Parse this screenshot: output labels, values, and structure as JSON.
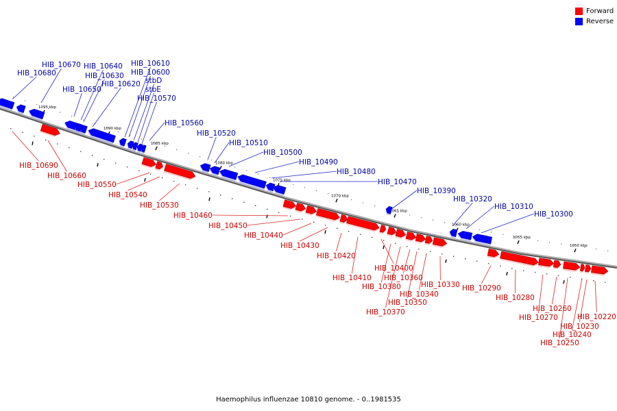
{
  "caption": "Haemophilus influenzae 10810 genome. - 0..1981535",
  "legend": [
    {
      "label": "Forward",
      "color": "#ff0000"
    },
    {
      "label": "Reverse",
      "color": "#0000ff"
    }
  ],
  "colors": {
    "forward": "#ff0000",
    "reverse": "#0000ff",
    "forward_label": "#cc0000",
    "reverse_label": "#0000aa",
    "backbone": "#888888"
  },
  "ticks": [
    "1095 kbp",
    "1090 kbp",
    "1085 kbp",
    "1080 kbp",
    "1075 kbp",
    "1070 kbp",
    "1065 kbp",
    "1060 kbp",
    "1055 kbp",
    "1050 kbp"
  ],
  "genes": [
    {
      "name": "HIB_10680",
      "strand": "reverse"
    },
    {
      "name": "HIB_10670",
      "strand": "reverse"
    },
    {
      "name": "HIB_10690",
      "strand": "forward"
    },
    {
      "name": "HIB_10660",
      "strand": "forward"
    },
    {
      "name": "HIB_10650",
      "strand": "reverse"
    },
    {
      "name": "HIB_10640",
      "strand": "reverse"
    },
    {
      "name": "HIB_10630",
      "strand": "reverse"
    },
    {
      "name": "HIB_10620",
      "strand": "reverse"
    },
    {
      "name": "HIB_10610",
      "strand": "reverse"
    },
    {
      "name": "HIB_10600",
      "strand": "reverse"
    },
    {
      "name": "stbD",
      "strand": "reverse"
    },
    {
      "name": "stbE",
      "strand": "reverse"
    },
    {
      "name": "HIB_10570",
      "strand": "reverse"
    },
    {
      "name": "HIB_10560",
      "strand": "reverse"
    },
    {
      "name": "HIB_10550",
      "strand": "forward"
    },
    {
      "name": "HIB_10540",
      "strand": "forward"
    },
    {
      "name": "HIB_10530",
      "strand": "forward"
    },
    {
      "name": "HIB_10520",
      "strand": "reverse"
    },
    {
      "name": "HIB_10510",
      "strand": "reverse"
    },
    {
      "name": "HIB_10500",
      "strand": "reverse"
    },
    {
      "name": "HIB_10490",
      "strand": "reverse"
    },
    {
      "name": "HIB_10480",
      "strand": "reverse"
    },
    {
      "name": "HIB_10470",
      "strand": "reverse"
    },
    {
      "name": "HIB_10460",
      "strand": "forward"
    },
    {
      "name": "HIB_10450",
      "strand": "forward"
    },
    {
      "name": "HIB_10440",
      "strand": "forward"
    },
    {
      "name": "HIB_10430",
      "strand": "forward"
    },
    {
      "name": "HIB_10420",
      "strand": "forward"
    },
    {
      "name": "HIB_10410",
      "strand": "forward"
    },
    {
      "name": "HIB_10400",
      "strand": "forward"
    },
    {
      "name": "HIB_10390",
      "strand": "reverse"
    },
    {
      "name": "HIB_10380",
      "strand": "forward"
    },
    {
      "name": "HIB_10370",
      "strand": "forward"
    },
    {
      "name": "HIB_10360",
      "strand": "forward"
    },
    {
      "name": "HIB_10350",
      "strand": "forward"
    },
    {
      "name": "HIB_10340",
      "strand": "forward"
    },
    {
      "name": "HIB_10330",
      "strand": "forward"
    },
    {
      "name": "HIB_10320",
      "strand": "reverse"
    },
    {
      "name": "HIB_10310",
      "strand": "reverse"
    },
    {
      "name": "HIB_10300",
      "strand": "reverse"
    },
    {
      "name": "HIB_10290",
      "strand": "forward"
    },
    {
      "name": "HIB_10280",
      "strand": "forward"
    },
    {
      "name": "HIB_10270",
      "strand": "forward"
    },
    {
      "name": "HIB_10260",
      "strand": "forward"
    },
    {
      "name": "HIB_10250",
      "strand": "forward"
    },
    {
      "name": "HIB_10240",
      "strand": "forward"
    },
    {
      "name": "HIB_10230",
      "strand": "forward"
    },
    {
      "name": "HIB_10220",
      "strand": "forward"
    }
  ]
}
